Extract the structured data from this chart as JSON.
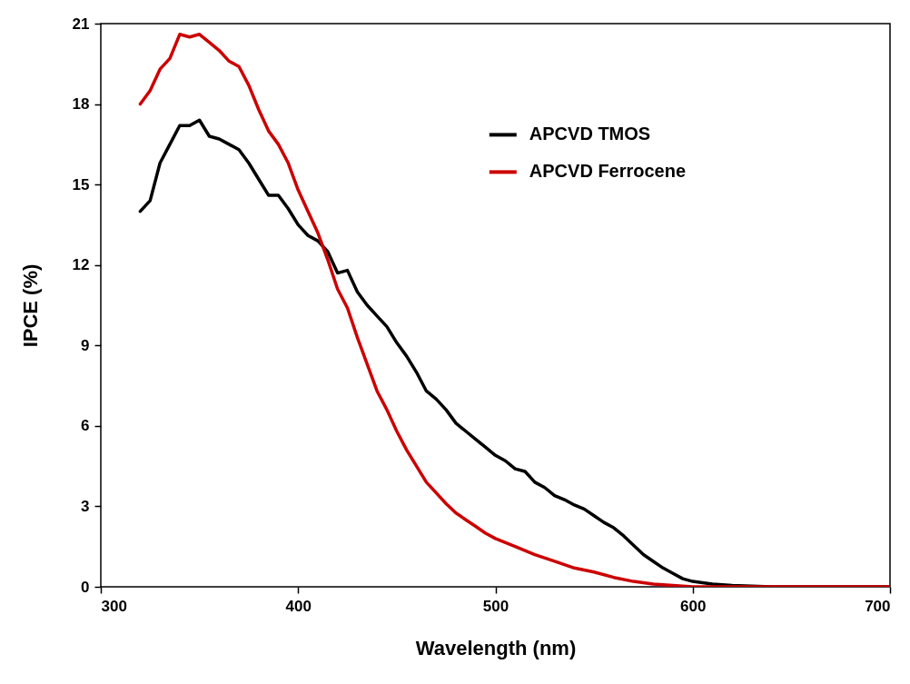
{
  "chart_data": {
    "type": "line",
    "xlabel": "Wavelength (nm)",
    "ylabel": "IPCE (%)",
    "xlim": [
      300,
      700
    ],
    "xticks": [
      300,
      400,
      500,
      600,
      700
    ],
    "ylim": [
      0,
      21
    ],
    "yticks": [
      0,
      3,
      6,
      9,
      12,
      15,
      18,
      21
    ],
    "legend": "top right",
    "series": [
      {
        "name": "APCVD TMOS",
        "color": "#000000",
        "x": [
          320,
          325,
          330,
          335,
          340,
          345,
          350,
          355,
          360,
          365,
          370,
          375,
          380,
          385,
          390,
          395,
          400,
          405,
          410,
          415,
          420,
          425,
          430,
          435,
          440,
          445,
          450,
          455,
          460,
          465,
          470,
          475,
          480,
          485,
          490,
          495,
          500,
          505,
          510,
          515,
          520,
          525,
          530,
          535,
          540,
          545,
          550,
          555,
          560,
          565,
          570,
          575,
          580,
          585,
          590,
          595,
          600,
          610,
          620,
          640,
          700
        ],
        "values": [
          14.0,
          14.4,
          15.8,
          16.5,
          17.2,
          17.2,
          17.4,
          16.8,
          16.7,
          16.5,
          16.3,
          15.8,
          15.2,
          14.6,
          14.6,
          14.1,
          13.5,
          13.1,
          12.9,
          12.5,
          11.7,
          11.8,
          11.0,
          10.5,
          10.1,
          9.7,
          9.1,
          8.6,
          8.0,
          7.3,
          7.0,
          6.6,
          6.1,
          5.8,
          5.5,
          5.2,
          4.9,
          4.7,
          4.4,
          4.3,
          3.9,
          3.7,
          3.4,
          3.25,
          3.05,
          2.9,
          2.65,
          2.4,
          2.2,
          1.9,
          1.55,
          1.2,
          0.95,
          0.7,
          0.5,
          0.3,
          0.2,
          0.1,
          0.05,
          0,
          0
        ]
      },
      {
        "name": "APCVD Ferrocene",
        "color": "#cc0000",
        "x": [
          320,
          325,
          330,
          335,
          340,
          345,
          350,
          355,
          360,
          365,
          370,
          375,
          380,
          385,
          390,
          395,
          400,
          405,
          410,
          415,
          420,
          425,
          430,
          435,
          440,
          445,
          450,
          455,
          460,
          465,
          470,
          475,
          480,
          485,
          490,
          495,
          500,
          510,
          520,
          530,
          540,
          550,
          560,
          570,
          580,
          590,
          600,
          700
        ],
        "values": [
          18.0,
          18.5,
          19.3,
          19.7,
          20.6,
          20.5,
          20.6,
          20.3,
          20.0,
          19.6,
          19.4,
          18.7,
          17.8,
          17.0,
          16.5,
          15.8,
          14.8,
          14.0,
          13.2,
          12.2,
          11.1,
          10.4,
          9.3,
          8.3,
          7.3,
          6.6,
          5.8,
          5.1,
          4.5,
          3.9,
          3.5,
          3.1,
          2.75,
          2.5,
          2.25,
          2.0,
          1.8,
          1.5,
          1.2,
          0.95,
          0.7,
          0.55,
          0.35,
          0.2,
          0.1,
          0.05,
          0,
          0
        ]
      }
    ]
  }
}
